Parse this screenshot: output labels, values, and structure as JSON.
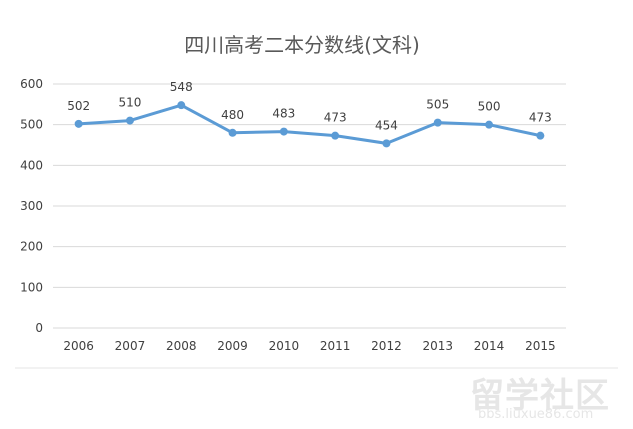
{
  "chart_data": {
    "type": "line",
    "title": "四川高考二本分数线(文科)",
    "categories": [
      "2006",
      "2007",
      "2008",
      "2009",
      "2010",
      "2011",
      "2012",
      "2013",
      "2014",
      "2015"
    ],
    "values": [
      502,
      510,
      548,
      480,
      483,
      473,
      454,
      505,
      500,
      473
    ],
    "xlabel": "",
    "ylabel": "",
    "ylim": [
      0,
      600
    ],
    "yticks": [
      "0",
      "100",
      "200",
      "300",
      "400",
      "500",
      "600"
    ],
    "grid": true,
    "legend": "none",
    "line_color": "#5b9bd5"
  },
  "watermark": {
    "text": "留学社区",
    "url": "bbs.liuxue86.com"
  }
}
